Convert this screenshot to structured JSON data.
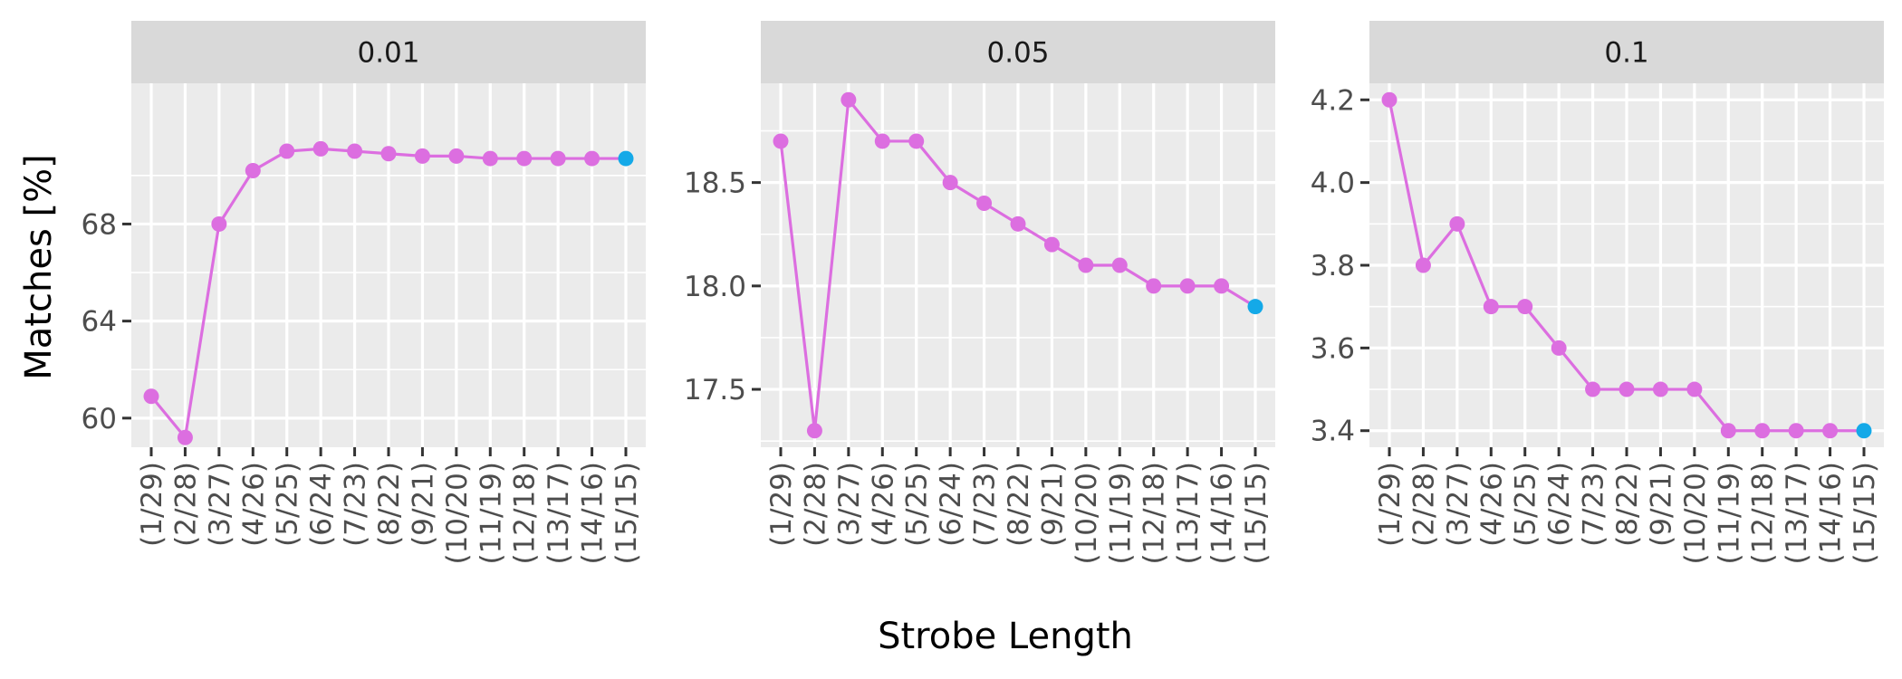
{
  "chart_data": {
    "type": "line",
    "facet_label_note": "facets",
    "xlabel": "Strobe Length",
    "ylabel": "Matches [%]",
    "categories": [
      "(1/29)",
      "(2/28)",
      "(3/27)",
      "(4/26)",
      "(5/25)",
      "(6/24)",
      "(7/23)",
      "(8/22)",
      "(9/21)",
      "(10/20)",
      "(11/19)",
      "(12/18)",
      "(13/17)",
      "(14/16)",
      "(15/15)"
    ],
    "colors": {
      "series": "#dc6ee0",
      "highlight": "#14a9e8"
    },
    "grid": true,
    "panels": [
      {
        "facet": "0.01",
        "ylim": [
          58.8,
          73.8
        ],
        "yticks": [
          60,
          64,
          68
        ],
        "ytick_labels": [
          "60",
          "64",
          "68"
        ],
        "values": [
          60.9,
          59.2,
          68.0,
          70.2,
          71.0,
          71.1,
          71.0,
          70.9,
          70.8,
          70.8,
          70.7,
          70.7,
          70.7,
          70.7,
          70.7
        ]
      },
      {
        "facet": "0.05",
        "ylim": [
          17.22,
          18.98
        ],
        "yticks": [
          17.5,
          18.0,
          18.5
        ],
        "ytick_labels": [
          "17.5",
          "18.0",
          "18.5"
        ],
        "values": [
          18.7,
          17.3,
          18.9,
          18.7,
          18.7,
          18.5,
          18.4,
          18.3,
          18.2,
          18.1,
          18.1,
          18.0,
          18.0,
          18.0,
          17.9
        ]
      },
      {
        "facet": "0.1",
        "ylim": [
          3.36,
          4.24
        ],
        "yticks": [
          3.4,
          3.6,
          3.8,
          4.0,
          4.2
        ],
        "ytick_labels": [
          "3.4",
          "3.6",
          "3.8",
          "4.0",
          "4.2"
        ],
        "values": [
          4.2,
          3.8,
          3.9,
          3.7,
          3.7,
          3.6,
          3.5,
          3.5,
          3.5,
          3.5,
          3.4,
          3.4,
          3.4,
          3.4,
          3.4
        ]
      }
    ]
  }
}
